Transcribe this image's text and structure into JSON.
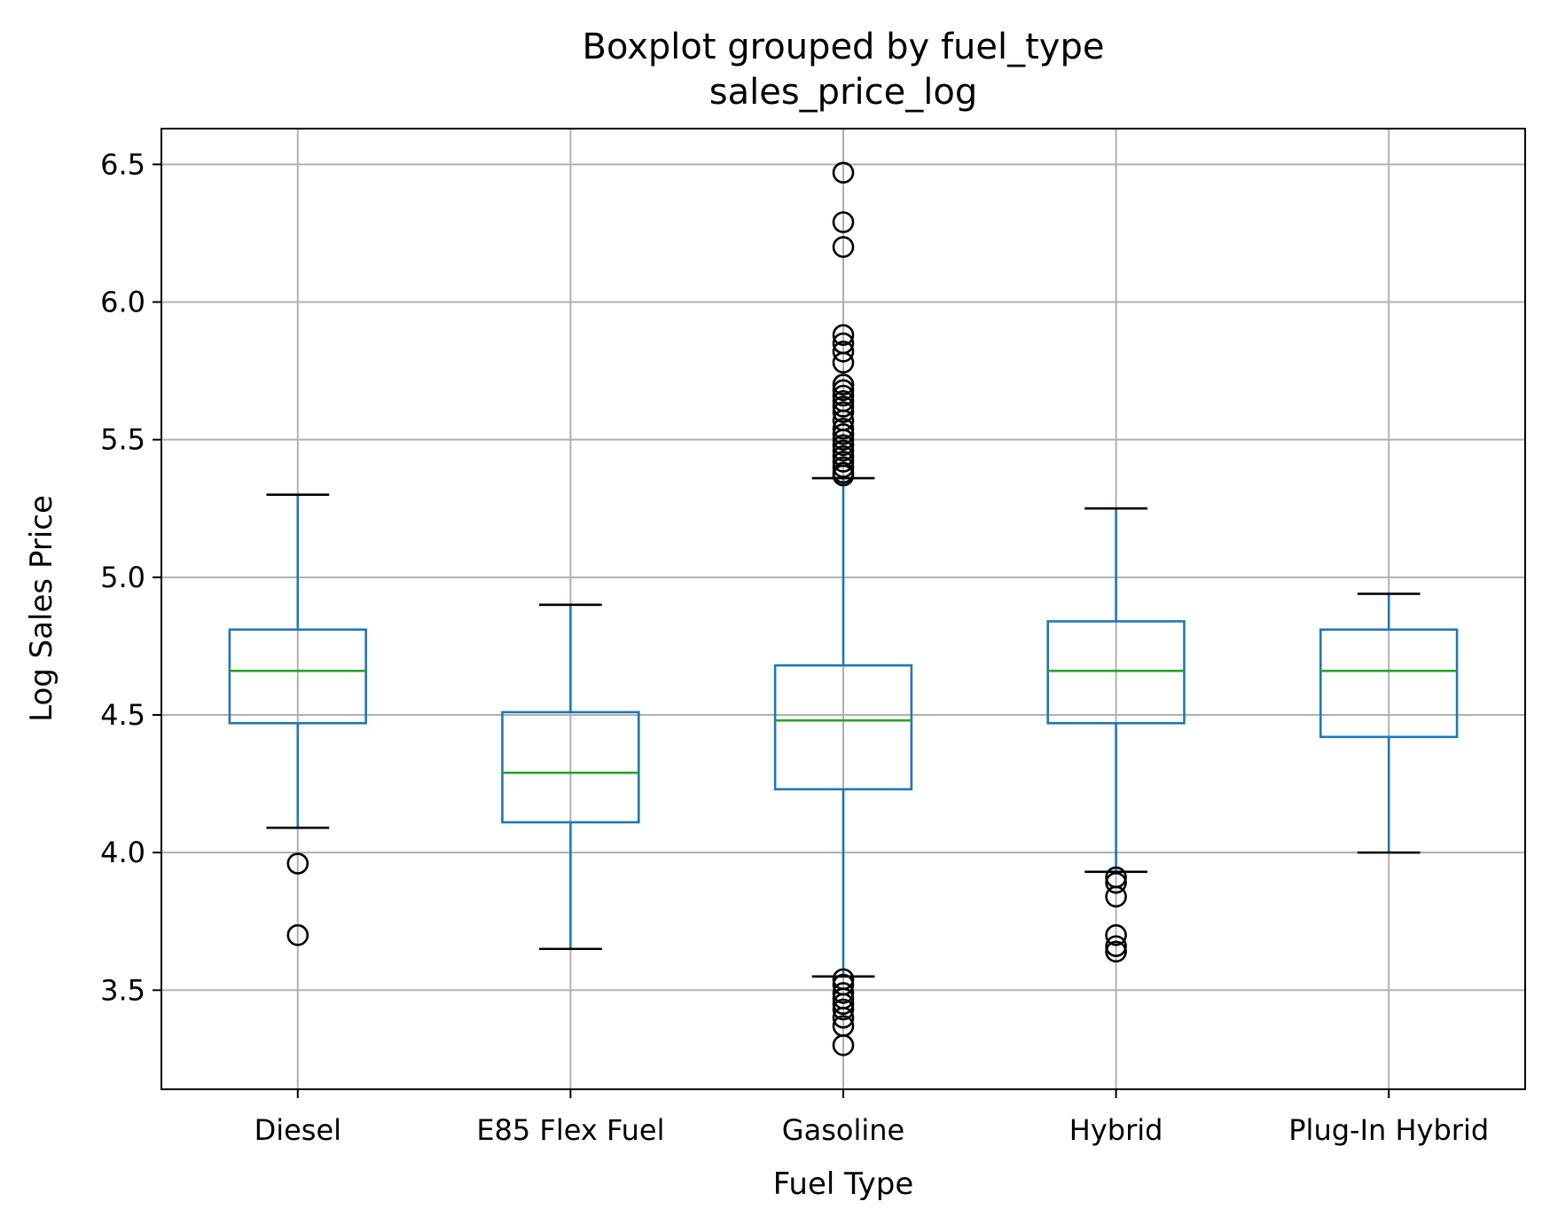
{
  "chart_data": {
    "type": "boxplot",
    "title": "Boxplot grouped by fuel_type",
    "subtitle": "sales_price_log",
    "xlabel": "Fuel Type",
    "ylabel": "Log Sales Price",
    "ylim": [
      3.14,
      6.63
    ],
    "yticks": [
      "3.5",
      "4.0",
      "4.5",
      "5.0",
      "5.5",
      "6.0",
      "6.5"
    ],
    "grid": true,
    "colors": {
      "box": "#1f77b4",
      "median": "#2ca02c",
      "flier": "#000000",
      "grid": "#b0b0b0"
    },
    "categories": [
      "Diesel",
      "E85 Flex Fuel",
      "Gasoline",
      "Hybrid",
      "Plug-In Hybrid"
    ],
    "boxes": [
      {
        "q1": 4.47,
        "median": 4.66,
        "q3": 4.81,
        "whisker_low": 4.09,
        "whisker_high": 5.3,
        "fliers": [
          3.96,
          3.7
        ]
      },
      {
        "q1": 4.11,
        "median": 4.29,
        "q3": 4.51,
        "whisker_low": 3.65,
        "whisker_high": 4.9,
        "fliers": []
      },
      {
        "q1": 4.23,
        "median": 4.48,
        "q3": 4.68,
        "whisker_low": 3.55,
        "whisker_high": 5.36,
        "fliers": [
          6.47,
          6.29,
          6.2,
          5.88,
          5.85,
          5.82,
          5.78,
          5.7,
          5.68,
          5.66,
          5.64,
          5.62,
          5.6,
          5.57,
          5.54,
          5.52,
          5.5,
          5.48,
          5.46,
          5.44,
          5.42,
          5.4,
          5.38,
          5.37,
          3.54,
          3.52,
          3.49,
          3.47,
          3.45,
          3.43,
          3.4,
          3.37,
          3.3
        ]
      },
      {
        "q1": 4.47,
        "median": 4.66,
        "q3": 4.84,
        "whisker_low": 3.93,
        "whisker_high": 5.25,
        "fliers": [
          3.91,
          3.89,
          3.84,
          3.7,
          3.66,
          3.64
        ]
      },
      {
        "q1": 4.42,
        "median": 4.66,
        "q3": 4.81,
        "whisker_low": 4.0,
        "whisker_high": 4.94,
        "fliers": []
      }
    ]
  }
}
